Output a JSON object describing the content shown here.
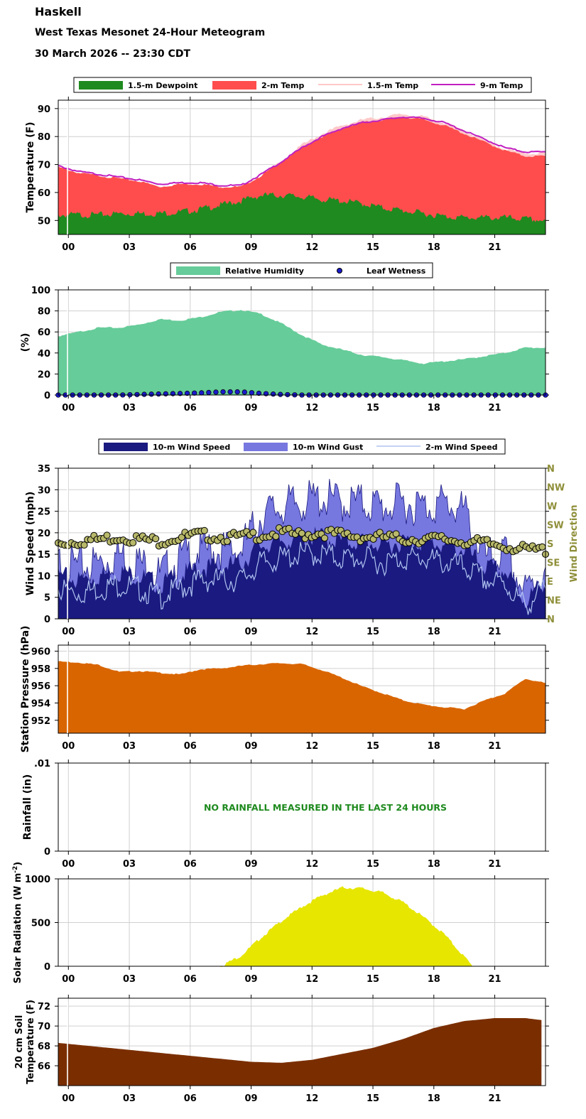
{
  "header": {
    "station": "Haskell",
    "title": "West Texas Mesonet 24-Hour Meteogram",
    "datetime": "30 March 2026 -- 23:30 CDT"
  },
  "x_ticks": [
    "00",
    "03",
    "06",
    "09",
    "12",
    "15",
    "18",
    "21"
  ],
  "chart_data": [
    {
      "type": "area",
      "id": "temperature",
      "ylabel": "Temperature (F)",
      "ylim": [
        45,
        93
      ],
      "yticks": [
        50,
        60,
        70,
        80,
        90
      ],
      "legend": [
        "1.5-m Dewpoint",
        "2-m Temp",
        "1.5-m Temp",
        "9-m Temp"
      ],
      "x_hours": [
        -0.5,
        0.5,
        1.5,
        2.5,
        3.5,
        4.5,
        5.5,
        6.5,
        7.5,
        8.5,
        9.5,
        10.5,
        11.5,
        12.5,
        13.5,
        14.5,
        15.5,
        16.5,
        17.5,
        18.5,
        19.5,
        20.5,
        21.5,
        22.5,
        23.5
      ],
      "series": [
        {
          "name": "2-m Temp",
          "color": "#ff4d4d",
          "values": [
            69,
            67,
            66,
            65,
            64,
            62,
            63,
            63,
            62,
            62,
            66,
            71,
            76,
            80,
            83,
            85,
            86,
            87,
            86,
            84,
            81,
            78,
            75,
            73,
            73
          ]
        },
        {
          "name": "1.5-m Dewpoint",
          "color": "#1f8a1f",
          "values": [
            52,
            52,
            52,
            52.5,
            52.5,
            52.5,
            53,
            54,
            55.5,
            57,
            59,
            59,
            58.5,
            57.5,
            57,
            56,
            54.5,
            53.5,
            52.5,
            51.5,
            51,
            51,
            51,
            50.5,
            50
          ]
        },
        {
          "name": "1.5-m Temp",
          "color": "#ffc8c8",
          "values": [
            69,
            67,
            66,
            65,
            64,
            62,
            63,
            63,
            62,
            62,
            66,
            71,
            77,
            81,
            84,
            86,
            87,
            88,
            87,
            85,
            82,
            78.5,
            75.5,
            74,
            74
          ]
        },
        {
          "name": "9-m Temp",
          "color": "#c020c0",
          "values": [
            69.5,
            67.5,
            66.5,
            65.5,
            64.5,
            63,
            63.5,
            63.5,
            62.5,
            62.5,
            66.5,
            71,
            76,
            80,
            83,
            85,
            86,
            87,
            86.5,
            85,
            82,
            79,
            76,
            74.5,
            74.5
          ]
        }
      ]
    },
    {
      "type": "area",
      "id": "humidity",
      "ylabel": "(%)",
      "ylim": [
        0,
        100
      ],
      "yticks": [
        0,
        20,
        40,
        60,
        80,
        100
      ],
      "legend": [
        "Relative Humidity",
        "Leaf Wetness"
      ],
      "x_hours": [
        -0.5,
        0.5,
        1.5,
        2.5,
        3.5,
        4.5,
        5.5,
        6.5,
        7.5,
        8.5,
        9.5,
        10.5,
        11.5,
        12.5,
        13.5,
        14.5,
        15.5,
        16.5,
        17.5,
        18.5,
        19.5,
        20.5,
        21.5,
        22.5,
        23.5
      ],
      "series": [
        {
          "name": "Relative Humidity",
          "color": "#66cc99",
          "values": [
            56,
            60,
            64,
            64,
            67,
            72,
            71,
            74,
            79,
            81,
            77,
            68,
            57,
            48,
            43,
            38,
            36,
            33,
            30,
            32,
            34,
            37,
            40,
            45,
            45
          ]
        },
        {
          "name": "Leaf Wetness",
          "color": "#1a1acc",
          "values": [
            0,
            0,
            0,
            0,
            0.5,
            1,
            1.5,
            2,
            3,
            3,
            1.5,
            0.5,
            0,
            0,
            0,
            0,
            0,
            0,
            0,
            0,
            0,
            0,
            0,
            0,
            0
          ]
        }
      ]
    },
    {
      "type": "area",
      "id": "wind",
      "ylabel": "Wind Speed (mph)",
      "ylabel_right": "Wind Direction",
      "ylim": [
        0,
        35
      ],
      "yticks": [
        0,
        5,
        10,
        15,
        20,
        25,
        30,
        35
      ],
      "direction_ticks": [
        "N",
        "NE",
        "E",
        "SE",
        "S",
        "SW",
        "W",
        "NW",
        "N"
      ],
      "legend": [
        "10-m Wind Speed",
        "10-m Wind Gust",
        "2-m Wind Speed"
      ],
      "x_hours": [
        -0.5,
        0.5,
        1.5,
        2.5,
        3.5,
        4.5,
        5.5,
        6.5,
        7.5,
        8.5,
        9.5,
        10.5,
        11.5,
        12.5,
        13.5,
        14.5,
        15.5,
        16.5,
        17.5,
        18.5,
        19.5,
        20.5,
        21.5,
        22.5,
        23.5
      ],
      "series": [
        {
          "name": "10-m Wind Gust",
          "color": "#7777e0",
          "values": [
            13,
            12,
            13,
            15,
            13,
            10,
            14,
            16,
            16,
            16,
            24,
            26,
            27,
            28,
            27,
            27,
            26,
            27,
            26,
            27,
            25,
            14,
            15,
            6,
            12
          ]
        },
        {
          "name": "10-m Wind Speed",
          "color": "#1a1a80",
          "values": [
            10,
            9,
            10,
            11,
            10,
            8,
            10,
            12,
            12,
            13,
            17,
            18,
            19,
            19,
            18,
            18,
            17,
            18,
            18,
            17,
            16,
            12,
            11,
            4,
            9
          ]
        },
        {
          "name": "2-m Wind Speed",
          "color": "#b0c4f0",
          "values": [
            7,
            6,
            7,
            8,
            7,
            5,
            7,
            9,
            9,
            9,
            13,
            14,
            15,
            15,
            14,
            14,
            13,
            14,
            14,
            13,
            12,
            9,
            8,
            3,
            7
          ]
        },
        {
          "name": "Wind Direction",
          "color": "#b8b86a",
          "values": [
            17.5,
            18,
            18.5,
            19,
            18.5,
            18,
            19,
            19.5,
            19,
            19,
            19.5,
            20,
            19.5,
            20,
            19.5,
            19,
            19,
            18.5,
            18.5,
            18.5,
            18,
            17.5,
            17,
            16,
            16
          ]
        }
      ]
    },
    {
      "type": "area",
      "id": "pressure",
      "ylabel": "Station Pressure (hPa)",
      "ylim": [
        950.5,
        960.7
      ],
      "yticks": [
        952,
        954,
        956,
        958,
        960
      ],
      "series": [
        {
          "name": "Station Pressure",
          "color": "#d96500",
          "values": [
            958.8,
            958.7,
            958.4,
            957.6,
            957.7,
            957.5,
            957.3,
            957.9,
            958.0,
            958.3,
            958.5,
            958.6,
            958.5,
            957.8,
            956.9,
            955.9,
            955.1,
            954.3,
            953.8,
            953.5,
            953.3,
            954.3,
            955.1,
            956.8,
            956.3
          ]
        }
      ],
      "x_hours": [
        -0.5,
        0.5,
        1.5,
        2.5,
        3.5,
        4.5,
        5.5,
        6.5,
        7.5,
        8.5,
        9.5,
        10.5,
        11.5,
        12.5,
        13.5,
        14.5,
        15.5,
        16.5,
        17.5,
        18.5,
        19.5,
        20.5,
        21.5,
        22.5,
        23.5
      ]
    },
    {
      "type": "area",
      "id": "rainfall",
      "ylabel": "Rainfall (in)",
      "ylim": [
        0,
        0.01
      ],
      "yticks": [
        0,
        0.01
      ],
      "ytick_labels": [
        "0",
        ".01"
      ],
      "annotation": "NO RAINFALL MEASURED IN THE LAST 24 HOURS",
      "series": []
    },
    {
      "type": "area",
      "id": "solar",
      "ylabel": "Solar Radiation (W m^-2)",
      "ylim": [
        0,
        1000
      ],
      "yticks": [
        0,
        500,
        1000
      ],
      "x_hours": [
        7.5,
        8.5,
        9.5,
        10.5,
        11.5,
        12.5,
        13.5,
        14.5,
        15.5,
        16.5,
        17.5,
        18.5,
        19.5,
        19.9
      ],
      "series": [
        {
          "name": "Solar Radiation",
          "color": "#e6e600",
          "values": [
            0,
            120,
            330,
            520,
            680,
            810,
            900,
            890,
            840,
            730,
            560,
            370,
            110,
            0
          ]
        }
      ]
    },
    {
      "type": "area",
      "id": "soil",
      "ylabel": "20 cm Soil Temperature (F)",
      "ylim": [
        64,
        72.8
      ],
      "yticks": [
        66,
        68,
        70,
        72
      ],
      "x_hours": [
        -0.5,
        1,
        3,
        5,
        7,
        9,
        10.5,
        12,
        13.5,
        15,
        16.5,
        18,
        19.5,
        21,
        22.5,
        23.3
      ],
      "series": [
        {
          "name": "20 cm Soil Temperature",
          "color": "#7a2e00",
          "values": [
            68.3,
            68.0,
            67.6,
            67.2,
            66.8,
            66.4,
            66.3,
            66.6,
            67.2,
            67.8,
            68.7,
            69.8,
            70.5,
            70.8,
            70.8,
            70.6
          ]
        }
      ]
    }
  ]
}
